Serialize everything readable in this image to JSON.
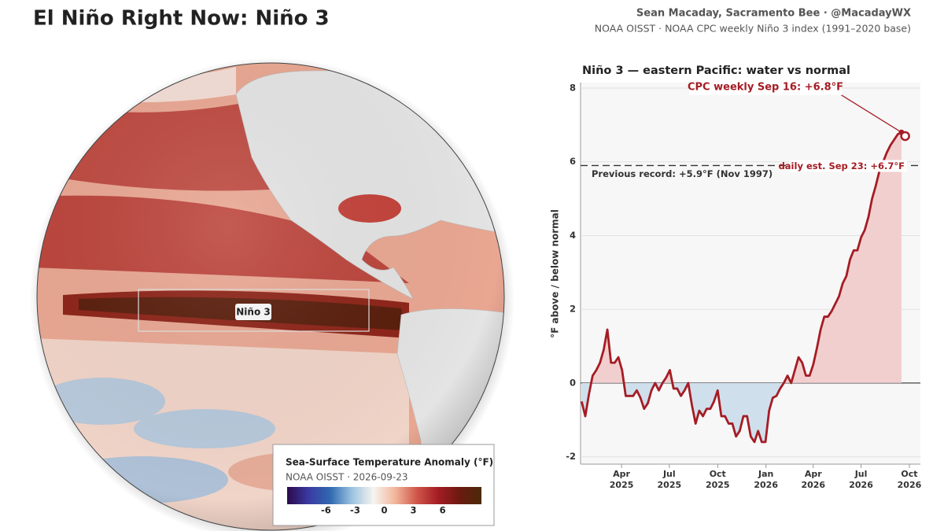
{
  "header": {
    "title": "El Niño Right Now: Niño 3",
    "credit": "Sean Macaday, Sacramento Bee · @MacadayWX",
    "source": "NOAA OISST · NOAA CPC weekly Niño 3 index (1991–2020 base)"
  },
  "map": {
    "region_label": "Niño 3",
    "colorbar": {
      "title": "Sea-Surface Temperature Anomaly (°F)",
      "subtitle": "NOAA OISST · 2026-09-23",
      "lim": [
        -10,
        10
      ],
      "ticks": [
        -6,
        -3,
        0,
        3,
        6
      ],
      "colors": [
        "#2a0a4a",
        "#3b3aa3",
        "#2f6ab0",
        "#9cc3e0",
        "#f7f4f0",
        "#f2b69c",
        "#d0564a",
        "#a31c24",
        "#6b1a10",
        "#4a2a08"
      ]
    }
  },
  "chart_data": {
    "type": "line",
    "title": "Niño 3 — eastern Pacific: water vs normal",
    "y_label": "°F above / below normal",
    "x": [
      "2025-01-15",
      "2025-01-22",
      "2025-01-29",
      "2025-02-05",
      "2025-02-12",
      "2025-02-19",
      "2025-02-26",
      "2025-03-05",
      "2025-03-12",
      "2025-03-19",
      "2025-03-26",
      "2025-04-02",
      "2025-04-09",
      "2025-04-16",
      "2025-04-23",
      "2025-04-30",
      "2025-05-07",
      "2025-05-14",
      "2025-05-21",
      "2025-05-28",
      "2025-06-04",
      "2025-06-11",
      "2025-06-18",
      "2025-06-25",
      "2025-07-02",
      "2025-07-09",
      "2025-07-16",
      "2025-07-23",
      "2025-07-30",
      "2025-08-06",
      "2025-08-13",
      "2025-08-20",
      "2025-08-27",
      "2025-09-03",
      "2025-09-10",
      "2025-09-17",
      "2025-09-24",
      "2025-10-01",
      "2025-10-08",
      "2025-10-15",
      "2025-10-22",
      "2025-10-29",
      "2025-11-05",
      "2025-11-12",
      "2025-11-19",
      "2025-11-26",
      "2025-12-03",
      "2025-12-10",
      "2025-12-17",
      "2025-12-24",
      "2025-12-31",
      "2026-01-07",
      "2026-01-14",
      "2026-01-21",
      "2026-01-28",
      "2026-02-04",
      "2026-02-11",
      "2026-02-18",
      "2026-02-25",
      "2026-03-04",
      "2026-03-11",
      "2026-03-18",
      "2026-03-25",
      "2026-04-01",
      "2026-04-08",
      "2026-04-15",
      "2026-04-22",
      "2026-04-29",
      "2026-05-06",
      "2026-05-13",
      "2026-05-20",
      "2026-05-27",
      "2026-06-03",
      "2026-06-10",
      "2026-06-17",
      "2026-06-24",
      "2026-07-01",
      "2026-07-08",
      "2026-07-15",
      "2026-07-22",
      "2026-07-29",
      "2026-08-05",
      "2026-08-12",
      "2026-08-19",
      "2026-08-26",
      "2026-09-02",
      "2026-09-09",
      "2026-09-16"
    ],
    "series": [
      {
        "name": "CPC weekly Niño 3",
        "color": "#a51c24",
        "values": [
          -0.5,
          -0.9,
          -0.3,
          0.2,
          0.35,
          0.55,
          0.9,
          1.45,
          0.55,
          0.55,
          0.7,
          0.35,
          -0.35,
          -0.35,
          -0.35,
          -0.2,
          -0.4,
          -0.7,
          -0.55,
          -0.2,
          0.0,
          -0.2,
          0.0,
          0.15,
          0.35,
          -0.15,
          -0.15,
          -0.35,
          -0.2,
          0.0,
          -0.6,
          -1.1,
          -0.75,
          -0.9,
          -0.7,
          -0.7,
          -0.5,
          -0.2,
          -0.9,
          -0.9,
          -1.1,
          -1.1,
          -1.45,
          -1.3,
          -0.9,
          -0.9,
          -1.45,
          -1.6,
          -1.3,
          -1.6,
          -1.6,
          -0.75,
          -0.4,
          -0.35,
          -0.15,
          0.0,
          0.2,
          0.0,
          0.35,
          0.7,
          0.55,
          0.2,
          0.2,
          0.5,
          0.95,
          1.45,
          1.8,
          1.8,
          1.95,
          2.15,
          2.35,
          2.7,
          2.9,
          3.35,
          3.6,
          3.6,
          3.95,
          4.15,
          4.5,
          5.0,
          5.35,
          5.75,
          6.0,
          6.25,
          6.45,
          6.6,
          6.75,
          6.8
        ]
      }
    ],
    "positive_fill": "#f2cfcf",
    "negative_fill": "#cfe0ec",
    "daily_estimate": {
      "x": "2026-09-23",
      "value": 6.7
    },
    "reference_line": {
      "value": 5.9,
      "label": "Previous record: +5.9°F (Nov 1997)"
    },
    "annotations": [
      "CPC weekly Sep 16: +6.8°F",
      "daily est. Sep 23: +6.7°F"
    ],
    "xlim": [
      "2025-01-13",
      "2026-10-22"
    ],
    "xticks": [
      {
        "value": "2025-04-01",
        "label": "Apr\n2025"
      },
      {
        "value": "2025-07-01",
        "label": "Jul\n2025"
      },
      {
        "value": "2025-10-01",
        "label": "Oct\n2025"
      },
      {
        "value": "2026-01-01",
        "label": "Jan\n2026"
      },
      {
        "value": "2026-04-01",
        "label": "Apr\n2026"
      },
      {
        "value": "2026-07-01",
        "label": "Jul\n2026"
      },
      {
        "value": "2026-10-01",
        "label": "Oct\n2026"
      }
    ],
    "ylim": [
      -2.2,
      8.15
    ],
    "yticks": [
      -2,
      0,
      2,
      4,
      6,
      8
    ],
    "grid": true
  }
}
